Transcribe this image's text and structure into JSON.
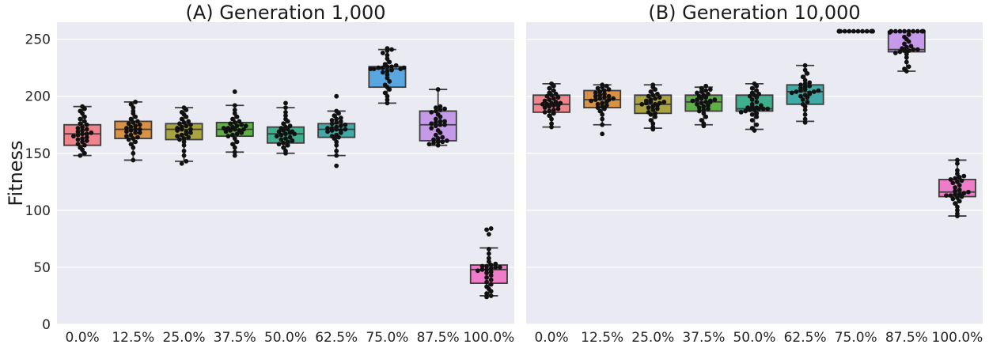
{
  "chart_data": {
    "type": "box-swarm",
    "shared_ylabel": "Fitness",
    "ylim": [
      0,
      265
    ],
    "yticks": [
      0,
      50,
      100,
      150,
      200,
      250
    ],
    "grid": true,
    "categories": [
      "0.0%",
      "12.5%",
      "25.0%",
      "37.5%",
      "50.0%",
      "62.5%",
      "75.0%",
      "87.5%",
      "100.0%"
    ],
    "colors": [
      "#f0838b",
      "#d99145",
      "#a9a340",
      "#5fae47",
      "#3eae8d",
      "#41aaa6",
      "#5aa6e0",
      "#c59ae8",
      "#ef7cc8"
    ],
    "panels": [
      {
        "title": "(A) Generation 1,000",
        "boxes": [
          {
            "q1": 157,
            "median": 167,
            "q3": 175,
            "whisker_low": 148,
            "whisker_high": 191
          },
          {
            "q1": 163,
            "median": 171,
            "q3": 178,
            "whisker_low": 144,
            "whisker_high": 195
          },
          {
            "q1": 162,
            "median": 171,
            "q3": 176,
            "whisker_low": 143,
            "whisker_high": 190
          },
          {
            "q1": 165,
            "median": 171,
            "q3": 177,
            "whisker_low": 151,
            "whisker_high": 192
          },
          {
            "q1": 159,
            "median": 167,
            "q3": 173,
            "whisker_low": 150,
            "whisker_high": 190
          },
          {
            "q1": 164,
            "median": 171,
            "q3": 176,
            "whisker_low": 148,
            "whisker_high": 187
          },
          {
            "q1": 208,
            "median": 224,
            "q3": 226,
            "whisker_low": 194,
            "whisker_high": 241
          },
          {
            "q1": 161,
            "median": 175,
            "q3": 187,
            "whisker_low": 157,
            "whisker_high": 206
          },
          {
            "q1": 36,
            "median": 48,
            "q3": 52,
            "whisker_low": 25,
            "whisker_high": 67
          }
        ],
        "points": [
          [
            148,
            150,
            153,
            155,
            157,
            158,
            160,
            161,
            162,
            163,
            164,
            165,
            166,
            167,
            167,
            168,
            169,
            170,
            171,
            172,
            173,
            175,
            176,
            178,
            180,
            182,
            185,
            187,
            189,
            191
          ],
          [
            144,
            150,
            155,
            158,
            160,
            162,
            163,
            164,
            165,
            166,
            168,
            169,
            170,
            171,
            172,
            173,
            174,
            175,
            176,
            177,
            178,
            180,
            182,
            185,
            187,
            190,
            193,
            195,
            168,
            171
          ],
          [
            141,
            143,
            148,
            152,
            157,
            160,
            162,
            163,
            164,
            165,
            166,
            167,
            168,
            170,
            171,
            172,
            173,
            174,
            175,
            176,
            177,
            178,
            180,
            182,
            184,
            186,
            188,
            190,
            169,
            171
          ],
          [
            148,
            151,
            155,
            158,
            160,
            163,
            165,
            166,
            167,
            168,
            169,
            170,
            171,
            172,
            172,
            173,
            174,
            175,
            176,
            177,
            178,
            180,
            182,
            185,
            188,
            192,
            204,
            170,
            171,
            174
          ],
          [
            150,
            152,
            155,
            157,
            158,
            159,
            160,
            161,
            162,
            163,
            164,
            165,
            166,
            167,
            168,
            169,
            170,
            171,
            172,
            173,
            174,
            176,
            178,
            180,
            183,
            186,
            190,
            194,
            167,
            169
          ],
          [
            139,
            148,
            152,
            157,
            160,
            163,
            164,
            165,
            166,
            168,
            169,
            170,
            171,
            172,
            172,
            173,
            174,
            175,
            176,
            177,
            178,
            179,
            180,
            181,
            183,
            185,
            187,
            200,
            170,
            171
          ],
          [
            194,
            197,
            200,
            203,
            206,
            208,
            210,
            213,
            216,
            219,
            221,
            222,
            223,
            224,
            224,
            225,
            225,
            226,
            226,
            227,
            228,
            230,
            233,
            236,
            238,
            240,
            241,
            242,
            224,
            225
          ],
          [
            157,
            158,
            159,
            160,
            160,
            161,
            162,
            163,
            164,
            166,
            168,
            170,
            172,
            174,
            175,
            176,
            177,
            178,
            180,
            182,
            184,
            186,
            187,
            188,
            189,
            190,
            191,
            206,
            175,
            178
          ],
          [
            24,
            25,
            27,
            29,
            31,
            33,
            35,
            37,
            39,
            41,
            43,
            45,
            46,
            47,
            48,
            48,
            49,
            50,
            50,
            51,
            51,
            52,
            53,
            55,
            58,
            62,
            66,
            79,
            83,
            84
          ]
        ]
      },
      {
        "title": "(B) Generation 10,000",
        "boxes": [
          {
            "q1": 186,
            "median": 193,
            "q3": 201,
            "whisker_low": 173,
            "whisker_high": 211
          },
          {
            "q1": 190,
            "median": 197,
            "q3": 205,
            "whisker_low": 175,
            "whisker_high": 210
          },
          {
            "q1": 185,
            "median": 193,
            "q3": 201,
            "whisker_low": 172,
            "whisker_high": 210
          },
          {
            "q1": 187,
            "median": 195,
            "q3": 201,
            "whisker_low": 175,
            "whisker_high": 208
          },
          {
            "q1": 187,
            "median": 189,
            "q3": 201,
            "whisker_low": 171,
            "whisker_high": 211
          },
          {
            "q1": 193,
            "median": 204,
            "q3": 210,
            "whisker_low": 178,
            "whisker_high": 227
          },
          {
            "q1": 257,
            "median": 257,
            "q3": 257,
            "whisker_low": 257,
            "whisker_high": 257
          },
          {
            "q1": 239,
            "median": 241,
            "q3": 257,
            "whisker_low": 222,
            "whisker_high": 257
          },
          {
            "q1": 112,
            "median": 116,
            "q3": 127,
            "whisker_low": 95,
            "whisker_high": 144
          }
        ],
        "points": [
          [
            173,
            176,
            180,
            183,
            185,
            186,
            187,
            188,
            189,
            190,
            191,
            192,
            193,
            193,
            194,
            195,
            196,
            197,
            198,
            199,
            200,
            201,
            202,
            203,
            205,
            207,
            209,
            211,
            192,
            194
          ],
          [
            167,
            175,
            180,
            184,
            187,
            189,
            190,
            191,
            192,
            193,
            194,
            195,
            196,
            197,
            198,
            199,
            200,
            201,
            202,
            203,
            204,
            205,
            206,
            207,
            208,
            209,
            210,
            197,
            198,
            200
          ],
          [
            171,
            173,
            176,
            179,
            182,
            184,
            185,
            186,
            188,
            189,
            190,
            191,
            192,
            193,
            194,
            195,
            196,
            197,
            198,
            199,
            200,
            201,
            202,
            204,
            206,
            208,
            210,
            193,
            194,
            195
          ],
          [
            174,
            176,
            179,
            182,
            185,
            187,
            188,
            189,
            190,
            191,
            192,
            193,
            194,
            195,
            196,
            197,
            198,
            199,
            200,
            201,
            202,
            203,
            204,
            205,
            206,
            207,
            209,
            195,
            196,
            197
          ],
          [
            170,
            172,
            175,
            179,
            182,
            184,
            185,
            186,
            187,
            188,
            188,
            189,
            189,
            190,
            191,
            193,
            195,
            197,
            199,
            200,
            201,
            202,
            203,
            205,
            207,
            209,
            211,
            189,
            190,
            192
          ],
          [
            177,
            180,
            184,
            188,
            191,
            193,
            195,
            197,
            199,
            200,
            201,
            202,
            203,
            204,
            205,
            206,
            207,
            208,
            209,
            210,
            211,
            212,
            214,
            217,
            220,
            223,
            227,
            203,
            204,
            205
          ],
          [
            257,
            257,
            257,
            257,
            257,
            257,
            257,
            257,
            257,
            257,
            257,
            257,
            257,
            257,
            257,
            257,
            257,
            257,
            257,
            257,
            257,
            257,
            257,
            257,
            257,
            257,
            257,
            257,
            257,
            257
          ],
          [
            222,
            224,
            226,
            230,
            234,
            237,
            238,
            239,
            240,
            240,
            241,
            241,
            242,
            243,
            244,
            246,
            248,
            250,
            252,
            254,
            256,
            257,
            257,
            257,
            257,
            257,
            257,
            257,
            257,
            257
          ],
          [
            95,
            97,
            100,
            103,
            106,
            108,
            110,
            111,
            112,
            113,
            113,
            114,
            114,
            115,
            116,
            117,
            118,
            120,
            122,
            124,
            125,
            126,
            127,
            128,
            129,
            130,
            132,
            135,
            141,
            144
          ]
        ]
      }
    ]
  }
}
